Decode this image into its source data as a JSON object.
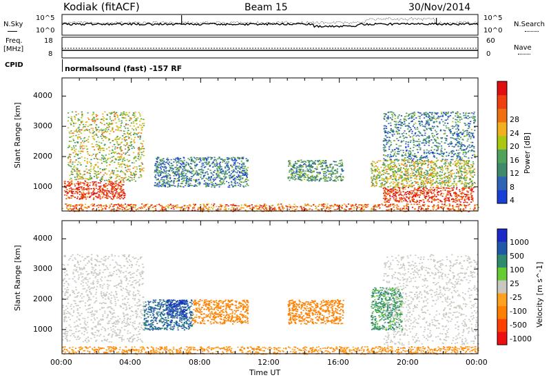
{
  "header": {
    "station": "Kodiak (fitACF)",
    "beam": "Beam 15",
    "date": "30/Nov/2014"
  },
  "strip1": {
    "left_label": "N.Sky",
    "right_label": "N.Search",
    "ytick_top": "10^5",
    "ytick_bottom": "10^0"
  },
  "strip2": {
    "left_label_1": "Freq.",
    "left_label_2": "[MHz]",
    "right_label": "Nave",
    "left_tick_top": "18",
    "left_tick_bottom": "8",
    "right_tick_top": "60",
    "right_tick_bottom": "0"
  },
  "cpid": {
    "label": "CPID",
    "text": "normalsound (fast) -157 RF"
  },
  "colors": {
    "power": [
      "#1a3fd6",
      "#2f63b8",
      "#3f8a6a",
      "#4fa35a",
      "#a8c814",
      "#f0b020",
      "#f07010",
      "#f04010",
      "#e01010"
    ],
    "velocity": [
      "#1c28c8",
      "#1f58a8",
      "#2f8a70",
      "#66cc33",
      "#c8c8c0",
      "#ffa020",
      "#ff8000",
      "#ff4000",
      "#ee1010"
    ]
  },
  "chart_data": [
    {
      "type": "heatmap",
      "name": "power",
      "ylabel": "Slant Range [km]",
      "yticks": [
        "1000",
        "2000",
        "3000",
        "4000"
      ],
      "ylim": [
        200,
        4600
      ],
      "xlim": [
        "00:00",
        "24:00"
      ],
      "colorbar_label": "Power [dB]",
      "colorbar_ticks": [
        "4",
        "8",
        "12",
        "16",
        "20",
        "24",
        "28"
      ],
      "colorbar_range": [
        0,
        32
      ],
      "approx_regions": [
        {
          "t": [
            0.1,
            3.6
          ],
          "r": [
            600,
            1200
          ],
          "value": 28
        },
        {
          "t": [
            0.3,
            4.7
          ],
          "r": [
            1200,
            3500
          ],
          "value": 16
        },
        {
          "t": [
            5.3,
            10.7
          ],
          "r": [
            1000,
            2000
          ],
          "value": 8
        },
        {
          "t": [
            13.0,
            16.2
          ],
          "r": [
            1200,
            1900
          ],
          "value": 10
        },
        {
          "t": [
            18.5,
            23.7
          ],
          "r": [
            500,
            1000
          ],
          "value": 28
        },
        {
          "t": [
            17.8,
            23.8
          ],
          "r": [
            1000,
            1900
          ],
          "value": 16
        },
        {
          "t": [
            18.5,
            23.8
          ],
          "r": [
            1900,
            3500
          ],
          "value": 8
        },
        {
          "t": [
            0.0,
            24.0
          ],
          "r": [
            200,
            450
          ],
          "value": 24
        }
      ]
    },
    {
      "type": "heatmap",
      "name": "velocity",
      "ylabel": "Slant Range [km]",
      "yticks": [
        "1000",
        "2000",
        "3000",
        "4000"
      ],
      "ylim": [
        200,
        4600
      ],
      "xlim": [
        "00:00",
        "24:00"
      ],
      "xticks": [
        "00:00",
        "04:00",
        "08:00",
        "12:00",
        "16:00",
        "20:00",
        "00:00"
      ],
      "xlabel": "Time UT",
      "colorbar_label": "Velocity [m s^-1]",
      "colorbar_ticks": [
        "1000",
        "500",
        "100",
        "25",
        "-25",
        "-100",
        "-500",
        "-1000"
      ],
      "approx_regions": [
        {
          "t": [
            0.0,
            4.7
          ],
          "r": [
            600,
            3500
          ],
          "value": 0
        },
        {
          "t": [
            4.7,
            7.5
          ],
          "r": [
            1000,
            2000
          ],
          "value": 600
        },
        {
          "t": [
            6.0,
            7.2
          ],
          "r": [
            1400,
            2000
          ],
          "value": 1000
        },
        {
          "t": [
            7.5,
            10.7
          ],
          "r": [
            1200,
            2000
          ],
          "value": -150
        },
        {
          "t": [
            13.0,
            16.2
          ],
          "r": [
            1200,
            2000
          ],
          "value": -300
        },
        {
          "t": [
            17.8,
            19.6
          ],
          "r": [
            1000,
            2400
          ],
          "value": 120
        },
        {
          "t": [
            18.5,
            24.0
          ],
          "r": [
            500,
            3500
          ],
          "value": 0
        },
        {
          "t": [
            0.0,
            24.0
          ],
          "r": [
            200,
            450
          ],
          "value": -100
        }
      ]
    }
  ]
}
